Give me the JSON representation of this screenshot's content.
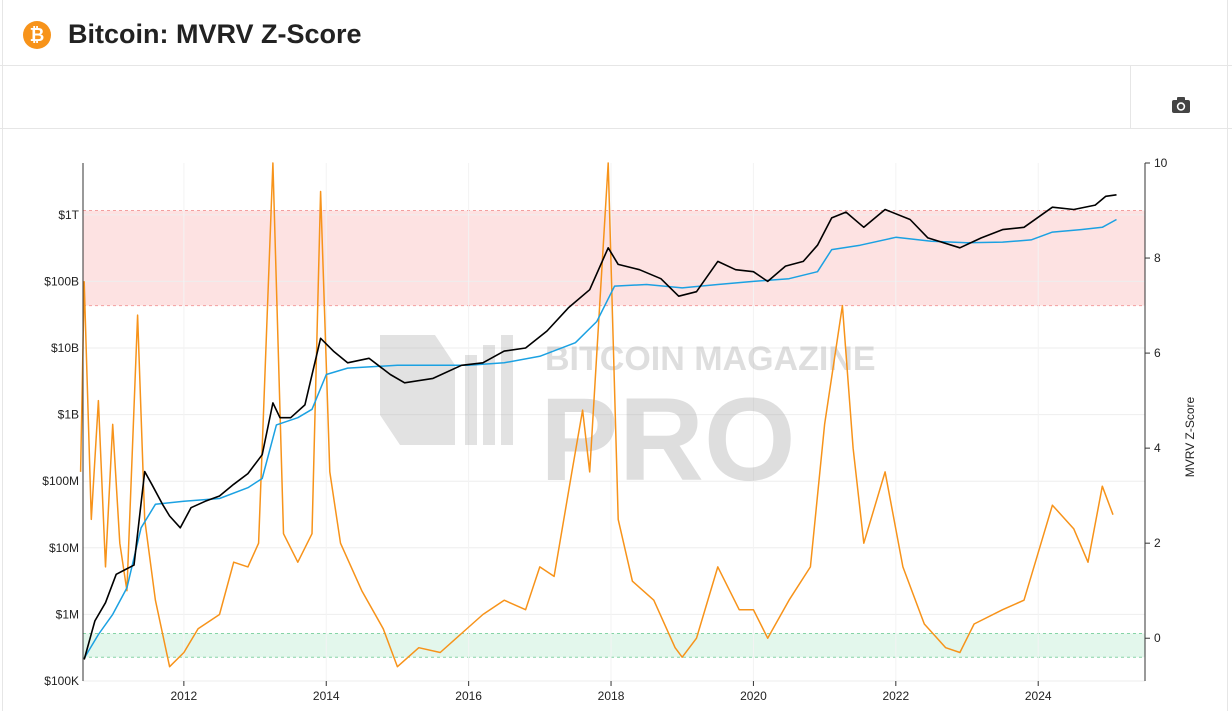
{
  "header": {
    "title": "Bitcoin: MVRV Z-Score",
    "icon": "bitcoin-icon",
    "icon_glyph": "₿"
  },
  "toolbar": {
    "screenshot_icon": "camera-icon"
  },
  "watermark": {
    "line1": "BITCOIN MAGAZINE",
    "line2": "PRO"
  },
  "colors": {
    "market_cap": "#000000",
    "realized_cap": "#1ba1e2",
    "zscore": "#f7931a",
    "overvalued_zone": "#fde2e2",
    "undervalued_zone": "#e3f7ec",
    "brand": "#f7931a"
  },
  "chart_data": {
    "type": "line",
    "x_axis": {
      "ticks": [
        "2012",
        "2014",
        "2016",
        "2018",
        "2020",
        "2022",
        "2024"
      ],
      "range": [
        "2010-08",
        "2025-07"
      ]
    },
    "y_left": {
      "scale": "log",
      "ticks": [
        "$100K",
        "$1M",
        "$10M",
        "$100M",
        "$1B",
        "$10B",
        "$100B",
        "$1T"
      ],
      "range": [
        100000,
        6000000000000
      ]
    },
    "y_right": {
      "label": "MVRV Z-Score",
      "ticks": [
        "0",
        "2",
        "4",
        "6",
        "8",
        "10"
      ],
      "range": [
        -0.9,
        10
      ]
    },
    "zones": [
      {
        "name": "overvalued",
        "z_from": 7,
        "z_to": 9
      },
      {
        "name": "undervalued",
        "z_from": -0.4,
        "z_to": 0.1
      }
    ],
    "series": [
      {
        "color": "#000000",
        "axis": "left",
        "points": [
          [
            2010.6,
            210000
          ],
          [
            2010.75,
            800000
          ],
          [
            2010.9,
            1500000
          ],
          [
            2011.05,
            4000000
          ],
          [
            2011.3,
            5500000
          ],
          [
            2011.45,
            140000000
          ],
          [
            2011.55,
            90000000
          ],
          [
            2011.7,
            45000000
          ],
          [
            2011.8,
            30000000
          ],
          [
            2011.95,
            20000000
          ],
          [
            2012.1,
            40000000
          ],
          [
            2012.3,
            50000000
          ],
          [
            2012.5,
            60000000
          ],
          [
            2012.7,
            90000000
          ],
          [
            2012.9,
            130000000
          ],
          [
            2013.1,
            250000000
          ],
          [
            2013.25,
            1500000000
          ],
          [
            2013.35,
            900000000
          ],
          [
            2013.5,
            900000000
          ],
          [
            2013.7,
            1400000000
          ],
          [
            2013.92,
            14000000000
          ],
          [
            2014.1,
            9000000000
          ],
          [
            2014.3,
            6000000000
          ],
          [
            2014.6,
            7000000000
          ],
          [
            2014.9,
            4000000000
          ],
          [
            2015.1,
            3000000000
          ],
          [
            2015.5,
            3500000000
          ],
          [
            2015.9,
            5500000000
          ],
          [
            2016.2,
            6000000000
          ],
          [
            2016.5,
            9000000000
          ],
          [
            2016.8,
            10000000000
          ],
          [
            2017.1,
            18000000000
          ],
          [
            2017.4,
            40000000000
          ],
          [
            2017.7,
            75000000000
          ],
          [
            2017.96,
            320000000000
          ],
          [
            2018.1,
            180000000000
          ],
          [
            2018.4,
            150000000000
          ],
          [
            2018.7,
            110000000000
          ],
          [
            2018.95,
            60000000000
          ],
          [
            2019.2,
            70000000000
          ],
          [
            2019.5,
            200000000000
          ],
          [
            2019.75,
            150000000000
          ],
          [
            2020.0,
            140000000000
          ],
          [
            2020.2,
            100000000000
          ],
          [
            2020.45,
            170000000000
          ],
          [
            2020.7,
            200000000000
          ],
          [
            2020.9,
            350000000000
          ],
          [
            2021.1,
            900000000000
          ],
          [
            2021.3,
            1100000000000
          ],
          [
            2021.55,
            650000000000
          ],
          [
            2021.85,
            1200000000000
          ],
          [
            2022.2,
            850000000000
          ],
          [
            2022.45,
            450000000000
          ],
          [
            2022.9,
            320000000000
          ],
          [
            2023.2,
            450000000000
          ],
          [
            2023.5,
            600000000000
          ],
          [
            2023.8,
            650000000000
          ],
          [
            2024.2,
            1300000000000
          ],
          [
            2024.5,
            1200000000000
          ],
          [
            2024.8,
            1400000000000
          ],
          [
            2024.95,
            1900000000000
          ],
          [
            2025.1,
            2000000000000
          ]
        ]
      },
      {
        "color": "#1ba1e2",
        "axis": "left",
        "points": [
          [
            2010.6,
            220000
          ],
          [
            2010.8,
            500000
          ],
          [
            2011.0,
            1000000
          ],
          [
            2011.2,
            2500000
          ],
          [
            2011.4,
            20000000
          ],
          [
            2011.6,
            45000000
          ],
          [
            2012.0,
            50000000
          ],
          [
            2012.5,
            55000000
          ],
          [
            2012.9,
            80000000
          ],
          [
            2013.1,
            110000000
          ],
          [
            2013.3,
            700000000
          ],
          [
            2013.6,
            900000000
          ],
          [
            2013.8,
            1200000000
          ],
          [
            2014.0,
            4000000000
          ],
          [
            2014.3,
            5000000000
          ],
          [
            2015.0,
            5500000000
          ],
          [
            2015.5,
            5500000000
          ],
          [
            2016.0,
            5500000000
          ],
          [
            2016.5,
            6000000000
          ],
          [
            2017.0,
            7500000000
          ],
          [
            2017.5,
            12000000000
          ],
          [
            2017.8,
            25000000000
          ],
          [
            2018.05,
            85000000000
          ],
          [
            2018.5,
            90000000000
          ],
          [
            2019.0,
            80000000000
          ],
          [
            2019.5,
            90000000000
          ],
          [
            2020.0,
            100000000000
          ],
          [
            2020.5,
            110000000000
          ],
          [
            2020.9,
            140000000000
          ],
          [
            2021.1,
            300000000000
          ],
          [
            2021.5,
            350000000000
          ],
          [
            2022.0,
            460000000000
          ],
          [
            2022.5,
            400000000000
          ],
          [
            2023.0,
            380000000000
          ],
          [
            2023.5,
            390000000000
          ],
          [
            2023.9,
            420000000000
          ],
          [
            2024.2,
            550000000000
          ],
          [
            2024.6,
            600000000000
          ],
          [
            2024.9,
            650000000000
          ],
          [
            2025.1,
            850000000000
          ]
        ]
      },
      {
        "color": "#f7931a",
        "axis": "right",
        "points": [
          [
            2010.55,
            3.5
          ],
          [
            2010.6,
            7.5
          ],
          [
            2010.7,
            2.5
          ],
          [
            2010.8,
            5.0
          ],
          [
            2010.9,
            1.5
          ],
          [
            2011.0,
            4.5
          ],
          [
            2011.1,
            2.0
          ],
          [
            2011.2,
            1.0
          ],
          [
            2011.35,
            6.8
          ],
          [
            2011.45,
            2.5
          ],
          [
            2011.6,
            0.8
          ],
          [
            2011.8,
            -0.6
          ],
          [
            2012.0,
            -0.3
          ],
          [
            2012.2,
            0.2
          ],
          [
            2012.5,
            0.5
          ],
          [
            2012.7,
            1.6
          ],
          [
            2012.9,
            1.5
          ],
          [
            2013.05,
            2.0
          ],
          [
            2013.25,
            10.0
          ],
          [
            2013.4,
            2.2
          ],
          [
            2013.6,
            1.6
          ],
          [
            2013.8,
            2.2
          ],
          [
            2013.92,
            9.4
          ],
          [
            2014.05,
            3.5
          ],
          [
            2014.2,
            2.0
          ],
          [
            2014.5,
            1.0
          ],
          [
            2014.8,
            0.2
          ],
          [
            2015.0,
            -0.6
          ],
          [
            2015.3,
            -0.2
          ],
          [
            2015.6,
            -0.3
          ],
          [
            2015.9,
            0.1
          ],
          [
            2016.2,
            0.5
          ],
          [
            2016.5,
            0.8
          ],
          [
            2016.8,
            0.6
          ],
          [
            2017.0,
            1.5
          ],
          [
            2017.2,
            1.3
          ],
          [
            2017.45,
            3.5
          ],
          [
            2017.6,
            4.8
          ],
          [
            2017.7,
            3.5
          ],
          [
            2017.96,
            10.0
          ],
          [
            2018.1,
            2.5
          ],
          [
            2018.3,
            1.2
          ],
          [
            2018.6,
            0.8
          ],
          [
            2018.9,
            -0.2
          ],
          [
            2019.0,
            -0.4
          ],
          [
            2019.2,
            0.0
          ],
          [
            2019.5,
            1.5
          ],
          [
            2019.8,
            0.6
          ],
          [
            2020.0,
            0.6
          ],
          [
            2020.2,
            0.0
          ],
          [
            2020.5,
            0.8
          ],
          [
            2020.8,
            1.5
          ],
          [
            2021.0,
            4.5
          ],
          [
            2021.25,
            7.0
          ],
          [
            2021.4,
            4.0
          ],
          [
            2021.55,
            2.0
          ],
          [
            2021.85,
            3.5
          ],
          [
            2022.1,
            1.5
          ],
          [
            2022.4,
            0.3
          ],
          [
            2022.7,
            -0.2
          ],
          [
            2022.9,
            -0.3
          ],
          [
            2023.1,
            0.3
          ],
          [
            2023.5,
            0.6
          ],
          [
            2023.8,
            0.8
          ],
          [
            2024.0,
            1.8
          ],
          [
            2024.2,
            2.8
          ],
          [
            2024.5,
            2.3
          ],
          [
            2024.7,
            1.6
          ],
          [
            2024.9,
            3.2
          ],
          [
            2025.05,
            2.6
          ]
        ]
      }
    ]
  }
}
